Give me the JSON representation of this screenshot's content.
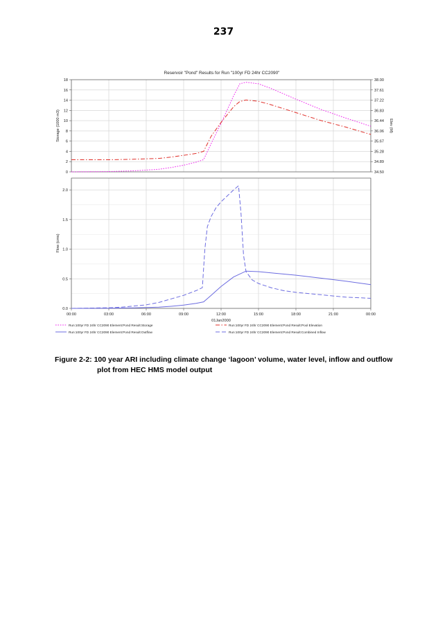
{
  "page": {
    "number": "237"
  },
  "caption": {
    "line1": "Figure 2-2: 100 year ARI including climate change ‘lagoon’ volume, water level, inflow and outflow",
    "line2": "plot from HEC HMS model output"
  },
  "colors": {
    "storage": "#ee22ee",
    "elevation": "#e0302a",
    "flow": "#6b6be0",
    "grid": "#cfcfcf",
    "axis": "#555555"
  },
  "chart_data": [
    {
      "type": "line",
      "title": "Reservoir \"Pond\" Results for Run \"100yr FD 24hr CC2090\"",
      "ylabel": "Storage (1000 m3)",
      "y2label": "Elev (M)",
      "xlabel": "",
      "ylim": [
        0,
        18
      ],
      "y2lim": [
        34.5,
        38.0
      ],
      "xlim": [
        0,
        24
      ],
      "yticks": [
        "0",
        "2",
        "4",
        "6",
        "8",
        "10",
        "12",
        "14",
        "16",
        "18"
      ],
      "y2ticks": [
        "34.50",
        "34.89",
        "35.28",
        "35.67",
        "36.06",
        "36.44",
        "36.83",
        "37.22",
        "37.61",
        "38.00"
      ],
      "grid": true,
      "series": [
        {
          "name": "Run:100yr FD 24hr CC2090 Element:Pond Result:Storage",
          "axis": "left",
          "style": "dotted",
          "x": [
            0,
            3,
            5,
            7,
            8,
            9,
            10,
            10.6,
            11.2,
            12,
            13,
            13.5,
            14,
            15,
            16,
            18,
            20,
            22,
            24
          ],
          "y": [
            0,
            0.05,
            0.2,
            0.5,
            0.85,
            1.3,
            1.9,
            2.4,
            5.5,
            9.5,
            14.8,
            17.2,
            17.5,
            17.2,
            16.3,
            14.2,
            12.2,
            10.5,
            8.9
          ]
        },
        {
          "name": "Run:100yr FD 24hr CC2090 Element:Pond Result:Pool Elevation",
          "axis": "right",
          "style": "dashdot",
          "x": [
            0,
            3,
            5,
            7,
            8,
            9,
            10,
            10.6,
            11.2,
            12,
            13,
            13.5,
            14,
            15,
            16,
            18,
            20,
            22,
            24
          ],
          "y": [
            34.96,
            34.96,
            34.98,
            35.01,
            35.06,
            35.13,
            35.2,
            35.28,
            35.85,
            36.38,
            36.97,
            37.17,
            37.23,
            37.18,
            37.05,
            36.75,
            36.45,
            36.2,
            35.92
          ]
        }
      ]
    },
    {
      "type": "line",
      "ylabel": "Flow (cms)",
      "xlabel": "01Jan2000",
      "ylim": [
        0,
        2.2
      ],
      "xlim": [
        0,
        24
      ],
      "yticks": [
        "0.0",
        "0.5",
        "1.0",
        "1.5",
        "2.0"
      ],
      "xticks": [
        "00:00",
        "03:00",
        "06:00",
        "09:00",
        "12:00",
        "15:00",
        "18:00",
        "21:00",
        "00:00"
      ],
      "grid": true,
      "series": [
        {
          "name": "Run:100yr FD 24hr CC2090 Element:Pond Result:Outflow",
          "style": "solid",
          "x": [
            0,
            3,
            5,
            7,
            8,
            9,
            10,
            10.6,
            11.2,
            12,
            13,
            14,
            15,
            16,
            18,
            20,
            22,
            24
          ],
          "y": [
            0,
            0.002,
            0.008,
            0.02,
            0.035,
            0.055,
            0.085,
            0.11,
            0.22,
            0.37,
            0.53,
            0.63,
            0.62,
            0.6,
            0.56,
            0.51,
            0.46,
            0.4
          ]
        },
        {
          "name": "Run:100yr FD 24hr CC2090 Element:Pond Result:Combined Inflow",
          "style": "dashed",
          "x": [
            0,
            3,
            4,
            5,
            6,
            7,
            8,
            9,
            10,
            10.5,
            10.7,
            10.9,
            11.2,
            11.6,
            12,
            12.5,
            13,
            13.4,
            13.6,
            13.8,
            14,
            14.5,
            15,
            16,
            17,
            18,
            19,
            20,
            21,
            22,
            23,
            24
          ],
          "y": [
            0,
            0.01,
            0.02,
            0.04,
            0.06,
            0.1,
            0.16,
            0.22,
            0.3,
            0.35,
            1.0,
            1.38,
            1.55,
            1.7,
            1.8,
            1.9,
            2.0,
            2.07,
            1.6,
            0.9,
            0.62,
            0.48,
            0.42,
            0.35,
            0.3,
            0.27,
            0.25,
            0.23,
            0.21,
            0.19,
            0.18,
            0.17
          ]
        }
      ]
    }
  ]
}
